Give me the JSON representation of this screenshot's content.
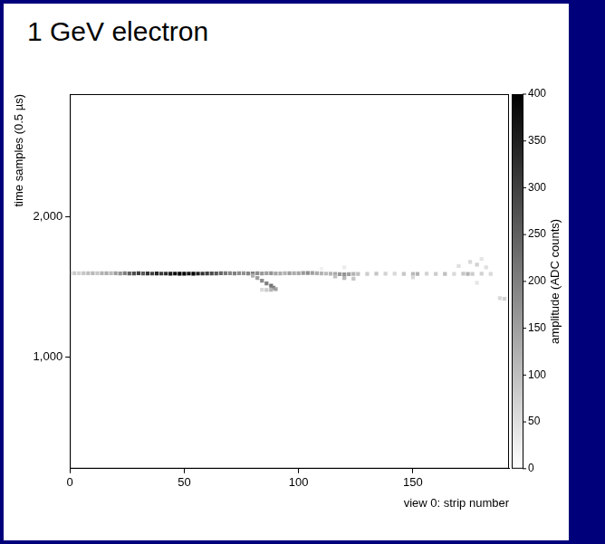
{
  "chart_data": {
    "type": "heatmap",
    "title": "1 GeV electron",
    "x_label": "view 0: strip number",
    "y_label": "time samples (0.5 µs)",
    "xlim": [
      0,
      192
    ],
    "xticks": [
      0,
      50,
      100,
      150
    ],
    "ylim": [
      200,
      2880
    ],
    "yticks": [
      1000,
      2000
    ],
    "grid": false,
    "cells": [
      [
        0,
        1598,
        60
      ],
      [
        2,
        1598,
        80
      ],
      [
        4,
        1598,
        70
      ],
      [
        6,
        1599,
        90
      ],
      [
        8,
        1598,
        100
      ],
      [
        10,
        1598,
        110
      ],
      [
        12,
        1599,
        90
      ],
      [
        14,
        1598,
        120
      ],
      [
        16,
        1598,
        130
      ],
      [
        18,
        1599,
        110
      ],
      [
        20,
        1598,
        150
      ],
      [
        22,
        1597,
        170
      ],
      [
        24,
        1598,
        200
      ],
      [
        26,
        1597,
        250
      ],
      [
        28,
        1597,
        280
      ],
      [
        30,
        1598,
        300
      ],
      [
        32,
        1597,
        260
      ],
      [
        34,
        1597,
        320
      ],
      [
        36,
        1596,
        300
      ],
      [
        38,
        1597,
        340
      ],
      [
        40,
        1596,
        310
      ],
      [
        42,
        1596,
        330
      ],
      [
        44,
        1595,
        360
      ],
      [
        46,
        1596,
        380
      ],
      [
        48,
        1595,
        400
      ],
      [
        50,
        1595,
        390
      ],
      [
        52,
        1596,
        370
      ],
      [
        54,
        1595,
        400
      ],
      [
        56,
        1596,
        350
      ],
      [
        58,
        1596,
        320
      ],
      [
        60,
        1597,
        300
      ],
      [
        62,
        1597,
        280
      ],
      [
        64,
        1597,
        260
      ],
      [
        66,
        1598,
        240
      ],
      [
        68,
        1598,
        210
      ],
      [
        70,
        1598,
        190
      ],
      [
        72,
        1597,
        200
      ],
      [
        74,
        1598,
        180
      ],
      [
        76,
        1598,
        170
      ],
      [
        78,
        1597,
        190
      ],
      [
        80,
        1597,
        200
      ],
      [
        82,
        1598,
        180
      ],
      [
        84,
        1597,
        160
      ],
      [
        86,
        1598,
        150
      ],
      [
        88,
        1598,
        170
      ],
      [
        90,
        1597,
        140
      ],
      [
        92,
        1597,
        130
      ],
      [
        94,
        1598,
        120
      ],
      [
        96,
        1598,
        150
      ],
      [
        98,
        1599,
        130
      ],
      [
        100,
        1599,
        140
      ],
      [
        102,
        1600,
        160
      ],
      [
        104,
        1600,
        180
      ],
      [
        106,
        1600,
        150
      ],
      [
        108,
        1598,
        130
      ],
      [
        110,
        1597,
        120
      ],
      [
        112,
        1596,
        110
      ],
      [
        114,
        1595,
        120
      ],
      [
        116,
        1594,
        140
      ],
      [
        118,
        1592,
        160
      ],
      [
        120,
        1591,
        170
      ],
      [
        122,
        1592,
        150
      ],
      [
        124,
        1593,
        120
      ],
      [
        126,
        1594,
        100
      ],
      [
        130,
        1594,
        80
      ],
      [
        134,
        1595,
        90
      ],
      [
        138,
        1595,
        70
      ],
      [
        142,
        1595,
        60
      ],
      [
        146,
        1594,
        90
      ],
      [
        150,
        1594,
        110
      ],
      [
        152,
        1594,
        120
      ],
      [
        156,
        1595,
        70
      ],
      [
        160,
        1594,
        80
      ],
      [
        164,
        1594,
        100
      ],
      [
        168,
        1594,
        60
      ],
      [
        172,
        1595,
        90
      ],
      [
        174,
        1594,
        120
      ],
      [
        176,
        1594,
        80
      ],
      [
        180,
        1595,
        70
      ],
      [
        184,
        1594,
        60
      ],
      [
        80,
        1580,
        120
      ],
      [
        82,
        1565,
        150
      ],
      [
        84,
        1545,
        180
      ],
      [
        86,
        1525,
        200
      ],
      [
        88,
        1510,
        220
      ],
      [
        89,
        1495,
        200
      ],
      [
        90,
        1485,
        150
      ],
      [
        88,
        1480,
        120
      ],
      [
        86,
        1478,
        80
      ],
      [
        84,
        1480,
        60
      ],
      [
        116,
        1575,
        100
      ],
      [
        120,
        1565,
        110
      ],
      [
        124,
        1560,
        90
      ],
      [
        150,
        1570,
        60
      ],
      [
        170,
        1650,
        50
      ],
      [
        175,
        1680,
        60
      ],
      [
        178,
        1660,
        70
      ],
      [
        180,
        1700,
        40
      ],
      [
        182,
        1640,
        50
      ],
      [
        178,
        1530,
        40
      ],
      [
        188,
        1420,
        60
      ],
      [
        190,
        1415,
        70
      ],
      [
        120,
        1640,
        30
      ],
      [
        110,
        1630,
        20
      ]
    ],
    "colorbar": {
      "range": [
        0,
        400
      ],
      "ticks": [
        0,
        50,
        100,
        150,
        200,
        250,
        300,
        350,
        400
      ],
      "label": "amplitude (ADC counts)"
    }
  }
}
